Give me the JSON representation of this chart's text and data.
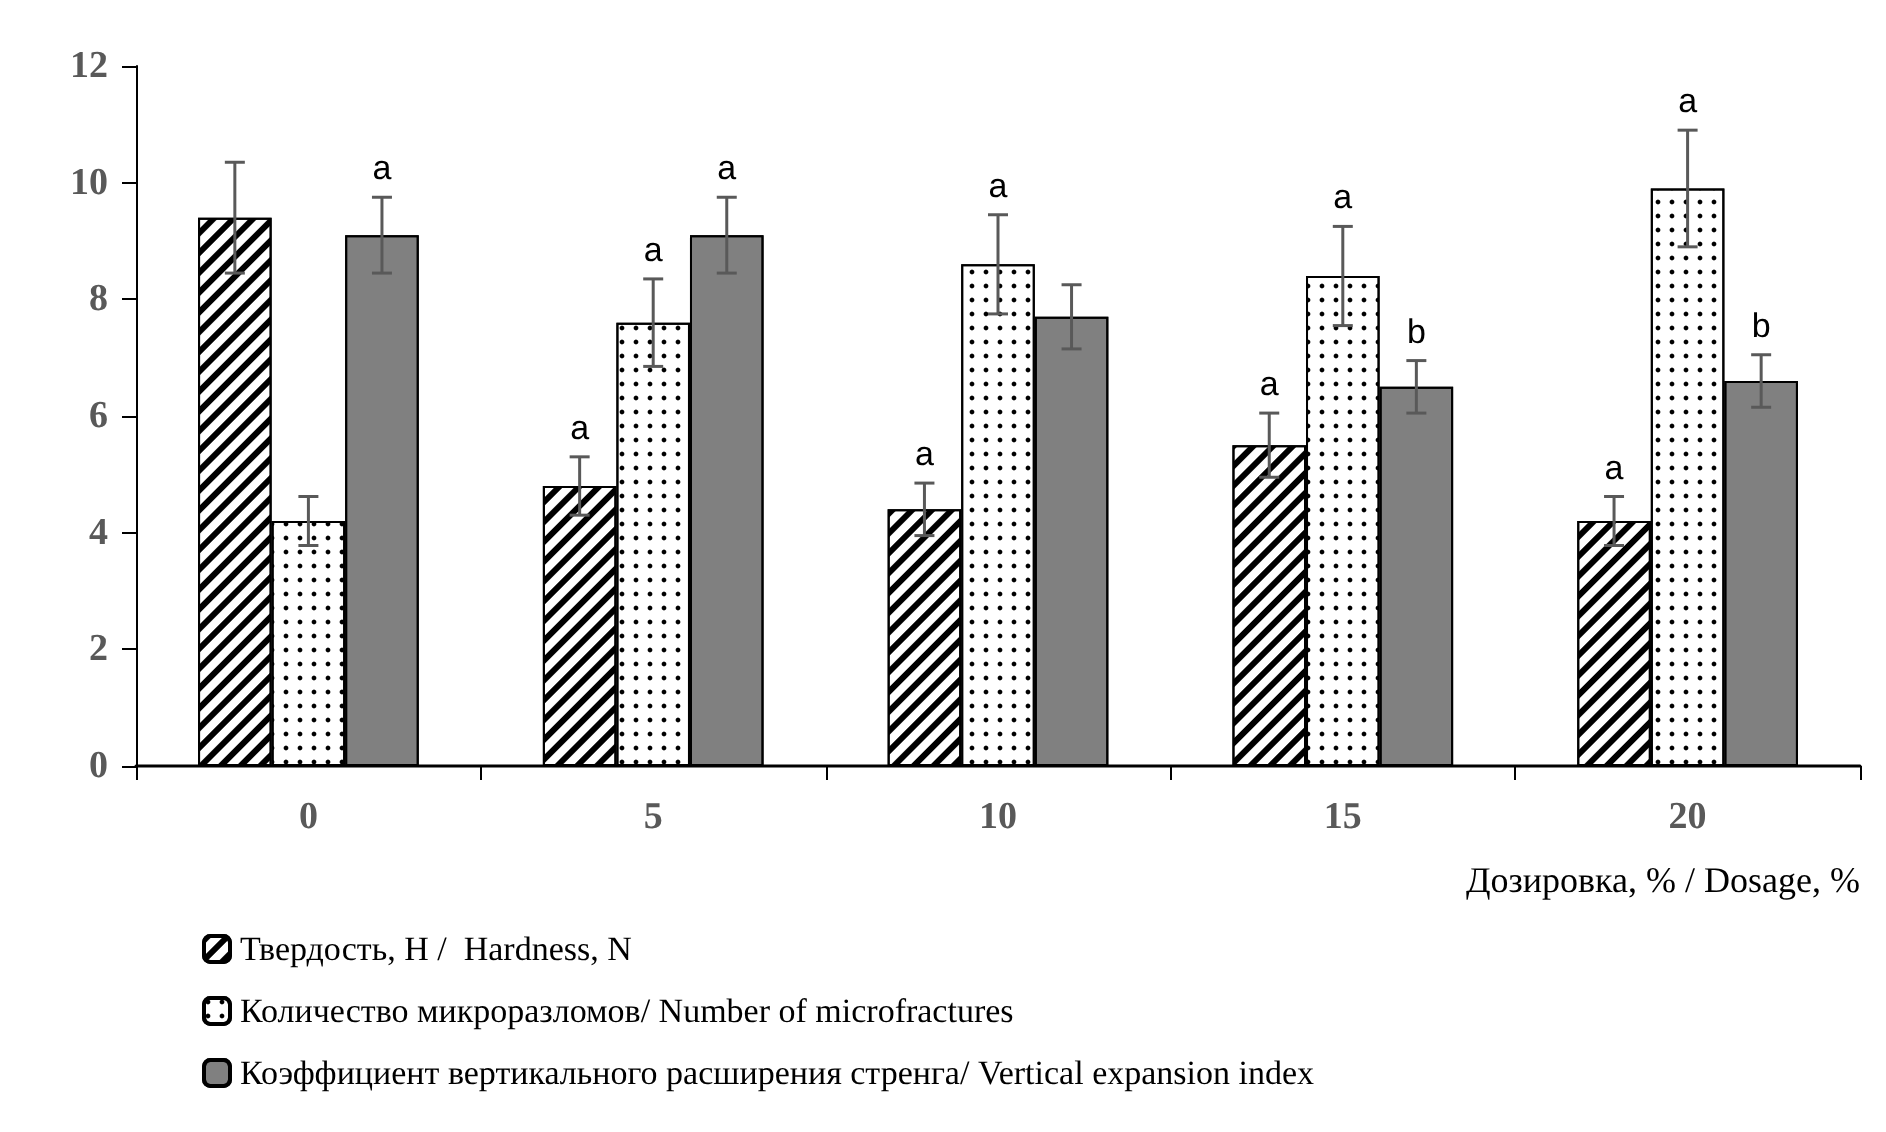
{
  "chart_data": {
    "type": "bar",
    "categories": [
      "0",
      "5",
      "10",
      "15",
      "20"
    ],
    "xlabel": "Дозировка, % / Dosage, %",
    "series": [
      {
        "name": "Твердость, Н /  Hardness, N",
        "color": "#000000",
        "values": [
          9.4,
          4.8,
          4.4,
          5.5,
          4.2
        ],
        "errors": [
          0.95,
          0.5,
          0.45,
          0.55,
          0.42
        ],
        "value_labels": [
          null,
          "a",
          "a",
          "a",
          "a"
        ]
      },
      {
        "name": "Количество микроразломов/ Number of microfractures",
        "color": "#000000",
        "values": [
          4.2,
          7.6,
          8.6,
          8.4,
          9.9
        ],
        "errors": [
          0.42,
          0.75,
          0.85,
          0.85,
          1.0
        ],
        "value_labels": [
          null,
          "a",
          "a",
          "a",
          "a"
        ]
      },
      {
        "name": "Коэффициент вертикального расширения стренга/ Vertical expansion index",
        "color": "#808080",
        "values": [
          9.1,
          9.1,
          7.7,
          6.5,
          6.6
        ],
        "errors": [
          0.65,
          0.65,
          0.55,
          0.45,
          0.45
        ],
        "value_labels": [
          "a",
          "a",
          null,
          "b",
          "b"
        ]
      }
    ],
    "ylim": [
      0,
      12
    ],
    "yticks": [
      0,
      2,
      4,
      6,
      8,
      10,
      12
    ],
    "grid": false,
    "legend": "bottom left"
  }
}
